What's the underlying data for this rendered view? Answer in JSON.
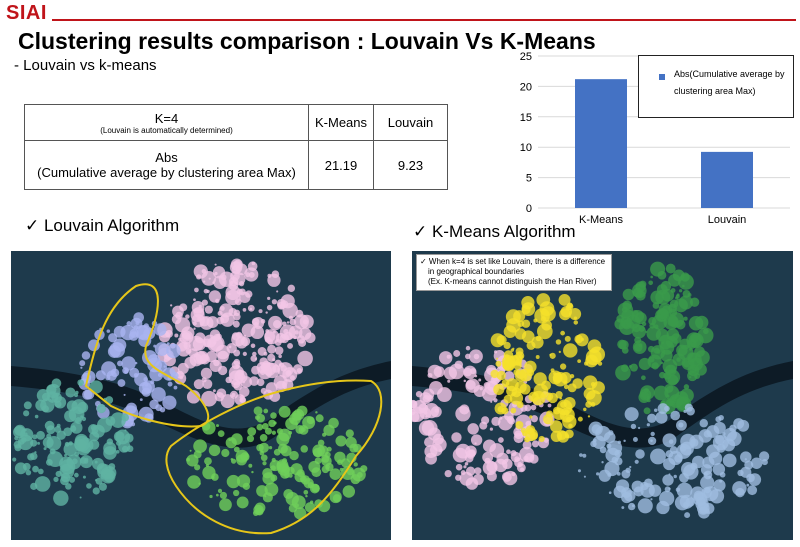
{
  "header": {
    "logo": "SIAI",
    "title": "Clustering results comparison : Louvain Vs K-Means",
    "subtitle": "-  Louvain vs k-means"
  },
  "table": {
    "k_label": "K=4",
    "k_note": "(Louvain is automatically determined)",
    "col_kmeans": "K-Means",
    "col_louvain": "Louvain",
    "row_label": "Abs",
    "row_label_sub": "(Cumulative average by clustering area Max)",
    "kmeans_value": "21.19",
    "louvain_value": "9.23"
  },
  "chart_data": {
    "type": "bar",
    "categories": [
      "K-Means",
      "Louvain"
    ],
    "series": [
      {
        "name": "Abs(Cumulative average by clustering area Max)",
        "values": [
          21.19,
          9.23
        ]
      }
    ],
    "ylim": [
      0,
      25
    ],
    "yticks": [
      "0",
      "5",
      "10",
      "15",
      "20",
      "25"
    ],
    "color": "#4472c4",
    "legend": "top-right"
  },
  "sections": {
    "louvain": "✓ Louvain Algorithm",
    "kmeans": "✓ K-Means Algorithm"
  },
  "note": {
    "line1": "✓ When k=4 is set like Louvain, there is a difference",
    "line2": "in geographical boundaries",
    "line3": "(Ex. K-means cannot distinguish the Han River)"
  },
  "maps": {
    "water_color": "#0d1b26",
    "land_color": "#1e3a4c",
    "louvain_border": "#e6c619"
  }
}
